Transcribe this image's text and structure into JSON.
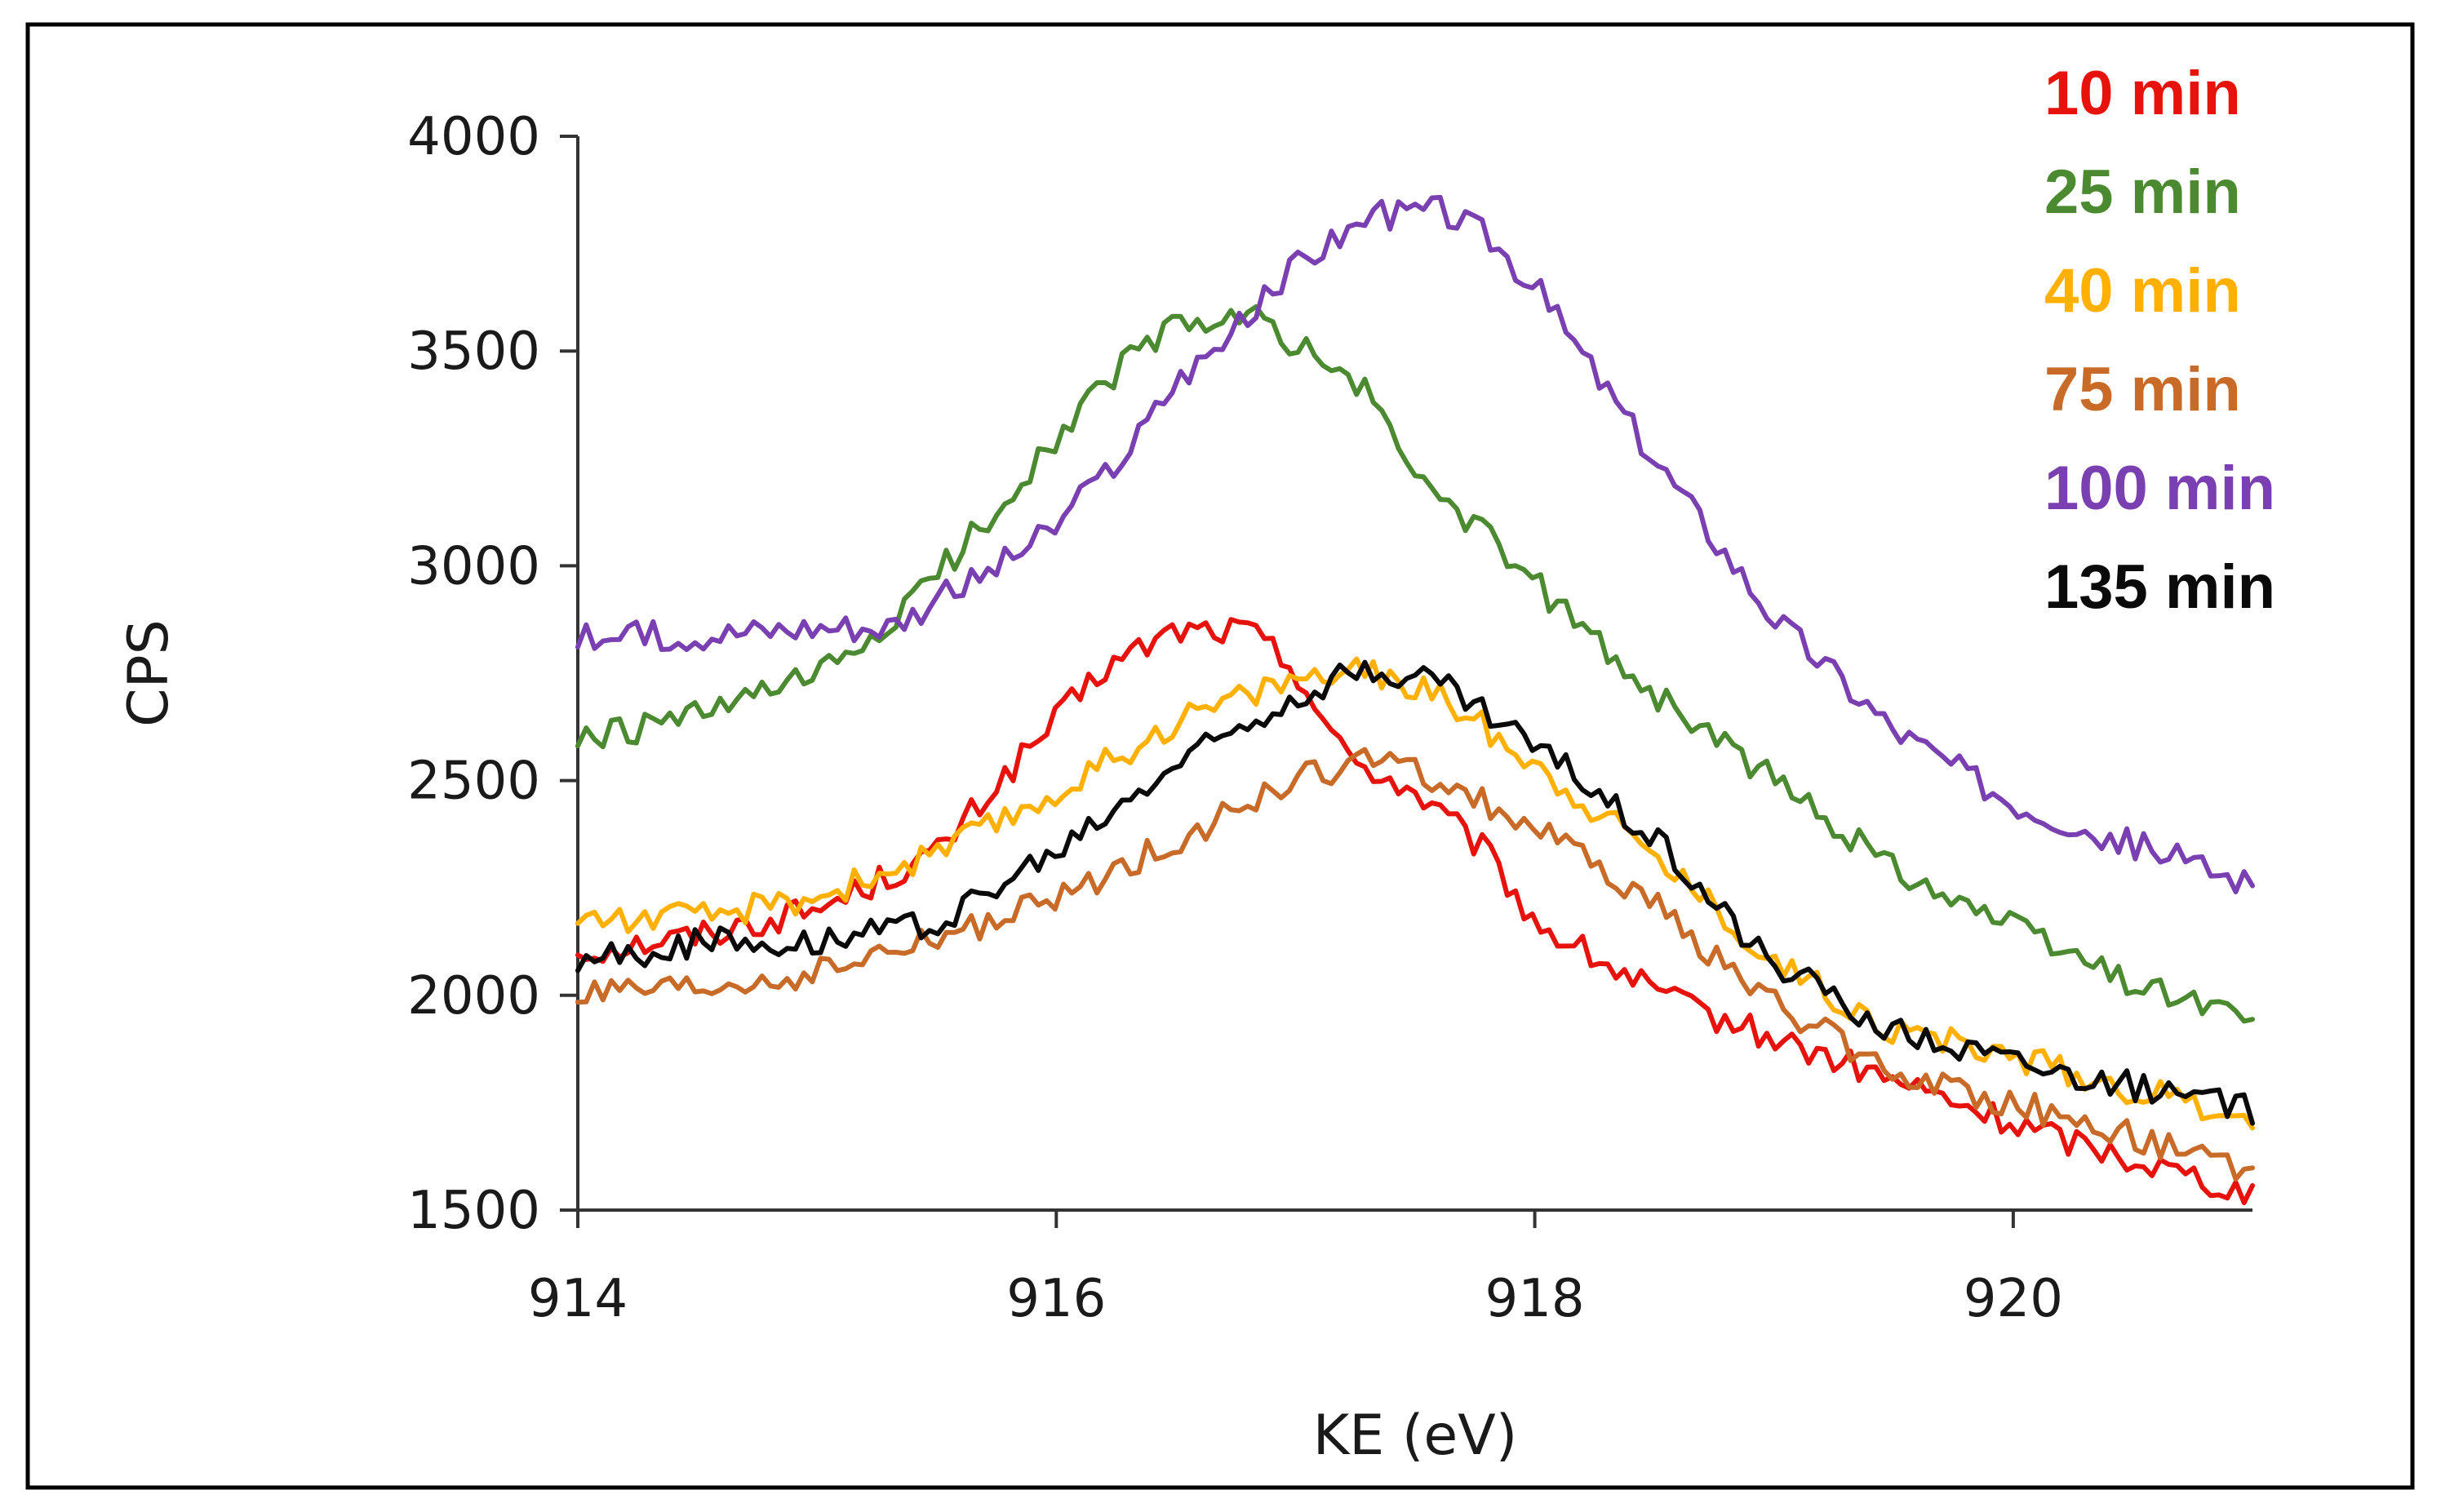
{
  "chart_data": {
    "type": "line",
    "title": "",
    "xlabel": "KE (eV)",
    "ylabel": "CPS",
    "xlim": [
      914,
      921
    ],
    "ylim": [
      1500,
      4000
    ],
    "xticks": [
      914,
      916,
      918,
      920
    ],
    "yticks": [
      1500,
      2000,
      2500,
      3000,
      3500,
      4000
    ],
    "grid": false,
    "legend_position": "top-right",
    "series": [
      {
        "name": "10 min",
        "color": "#e8120c",
        "x": [
          914.0,
          914.5,
          915.0,
          915.5,
          915.8,
          916.2,
          916.5,
          916.8,
          917.0,
          917.2,
          917.5,
          917.8,
          918.0,
          918.3,
          918.6,
          919.0,
          919.5,
          920.0,
          920.5,
          921.0
        ],
        "y": [
          2100,
          2140,
          2200,
          2330,
          2520,
          2760,
          2850,
          2850,
          2760,
          2560,
          2470,
          2330,
          2170,
          2070,
          1980,
          1900,
          1800,
          1700,
          1620,
          1540
        ]
      },
      {
        "name": "25 min",
        "color": "#4b8a30",
        "x": [
          914.0,
          914.5,
          915.0,
          915.3,
          915.7,
          916.0,
          916.3,
          916.5,
          916.8,
          917.0,
          917.3,
          917.5,
          918.0,
          918.5,
          919.0,
          919.5,
          920.0,
          920.5,
          921.0
        ],
        "y": [
          2590,
          2650,
          2740,
          2860,
          3100,
          3300,
          3480,
          3560,
          3580,
          3520,
          3400,
          3220,
          2960,
          2700,
          2500,
          2300,
          2160,
          2030,
          1950
        ]
      },
      {
        "name": "40 min",
        "color": "#ffb000",
        "x": [
          914.0,
          914.5,
          915.0,
          915.5,
          916.0,
          916.5,
          917.0,
          917.3,
          917.6,
          918.0,
          918.5,
          919.0,
          919.5,
          920.0,
          920.5,
          921.0
        ],
        "y": [
          2180,
          2180,
          2230,
          2330,
          2470,
          2640,
          2740,
          2750,
          2700,
          2540,
          2330,
          2080,
          1920,
          1860,
          1780,
          1720
        ]
      },
      {
        "name": "75 min",
        "color": "#c86a28",
        "x": [
          914.0,
          914.5,
          915.0,
          915.5,
          916.0,
          916.5,
          917.0,
          917.3,
          917.6,
          918.0,
          918.5,
          919.0,
          919.5,
          920.0,
          920.5,
          921.0
        ],
        "y": [
          2000,
          2010,
          2050,
          2130,
          2220,
          2360,
          2500,
          2550,
          2500,
          2390,
          2210,
          1980,
          1820,
          1750,
          1670,
          1580
        ]
      },
      {
        "name": "100 min",
        "color": "#7a3fb0",
        "x": [
          914.0,
          914.5,
          915.0,
          915.3,
          915.7,
          916.0,
          916.3,
          916.5,
          916.8,
          917.0,
          917.3,
          917.6,
          917.8,
          918.0,
          918.5,
          919.0,
          919.5,
          920.0,
          920.5,
          921.0
        ],
        "y": [
          2830,
          2840,
          2860,
          2860,
          2980,
          3090,
          3270,
          3430,
          3570,
          3700,
          3810,
          3830,
          3770,
          3650,
          3250,
          2880,
          2620,
          2450,
          2350,
          2260
        ]
      },
      {
        "name": "135 min",
        "color": "#0a0a0a",
        "x": [
          914.0,
          914.5,
          915.0,
          915.5,
          916.0,
          916.5,
          917.0,
          917.3,
          917.6,
          918.0,
          918.5,
          919.0,
          919.5,
          920.0,
          920.5,
          921.0
        ],
        "y": [
          2080,
          2120,
          2130,
          2170,
          2330,
          2540,
          2700,
          2760,
          2730,
          2580,
          2370,
          2070,
          1920,
          1850,
          1790,
          1730
        ]
      }
    ]
  }
}
